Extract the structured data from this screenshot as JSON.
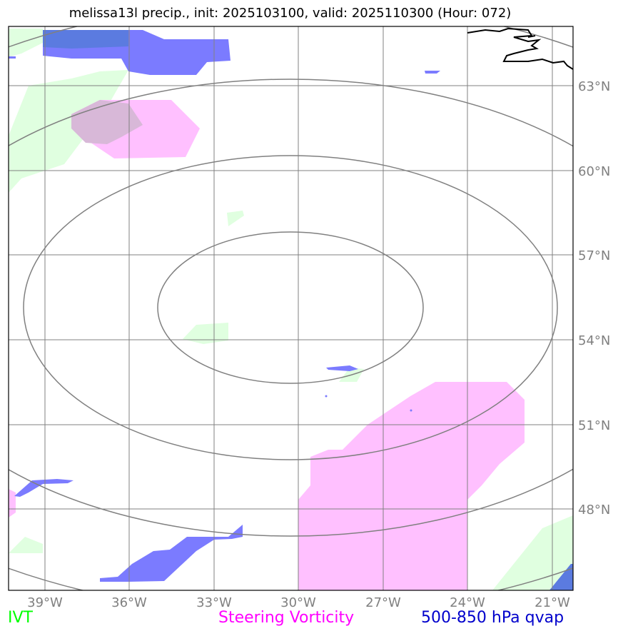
{
  "title": "melissa13l precip., init: 2025103100, valid: 2025110300 (Hour: 072)",
  "map": {
    "lon_ticks": [
      "39°W",
      "36°W",
      "33°W",
      "30°W",
      "27°W",
      "24°W",
      "21°W"
    ],
    "lat_ticks": [
      "63°N",
      "60°N",
      "57°N",
      "54°N",
      "51°N",
      "48°N"
    ]
  },
  "legend": {
    "ivt": "IVT",
    "vorticity": "Steering Vorticity",
    "qvap": "500-850 hPa qvap"
  },
  "colors": {
    "ivt": "#00ff00",
    "vorticity": "#ff00ff",
    "qvap": "#0000cc",
    "ivt_fill": "#e0ffe0",
    "vort_fill": "#ffc0ff",
    "qvap_fill": "#7b7bff",
    "grid": "#808080"
  }
}
